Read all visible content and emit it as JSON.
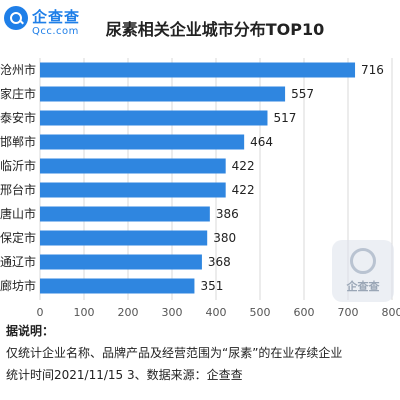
{
  "brand": {
    "name": "企查查",
    "domain": "Qcc.com"
  },
  "notes": {
    "heading": "据说明：",
    "line1": "仅统计企业名称、品牌产品及经营范围为“尿素”的在业存续企业",
    "line2": "统计时间2021/11/15  3、数据来源：企查查"
  },
  "watermark": {
    "text": "企查查"
  },
  "chart_data": {
    "type": "bar",
    "orientation": "horizontal",
    "title": "尿素相关企业城市分布TOP10",
    "categories": [
      "沧州市",
      "家庄市",
      "泰安市",
      "邯郸市",
      "临沂市",
      "邢台市",
      "唐山市",
      "保定市",
      "通辽市",
      "廊坊市"
    ],
    "values": [
      716,
      557,
      517,
      464,
      422,
      422,
      386,
      380,
      368,
      351
    ],
    "xlim": [
      0,
      800
    ],
    "xticks": [
      0,
      100,
      200,
      300,
      400,
      500,
      600,
      700,
      800
    ],
    "grid": "vertical",
    "bar_color": "#2f86e0",
    "xlabel": "",
    "ylabel": ""
  }
}
